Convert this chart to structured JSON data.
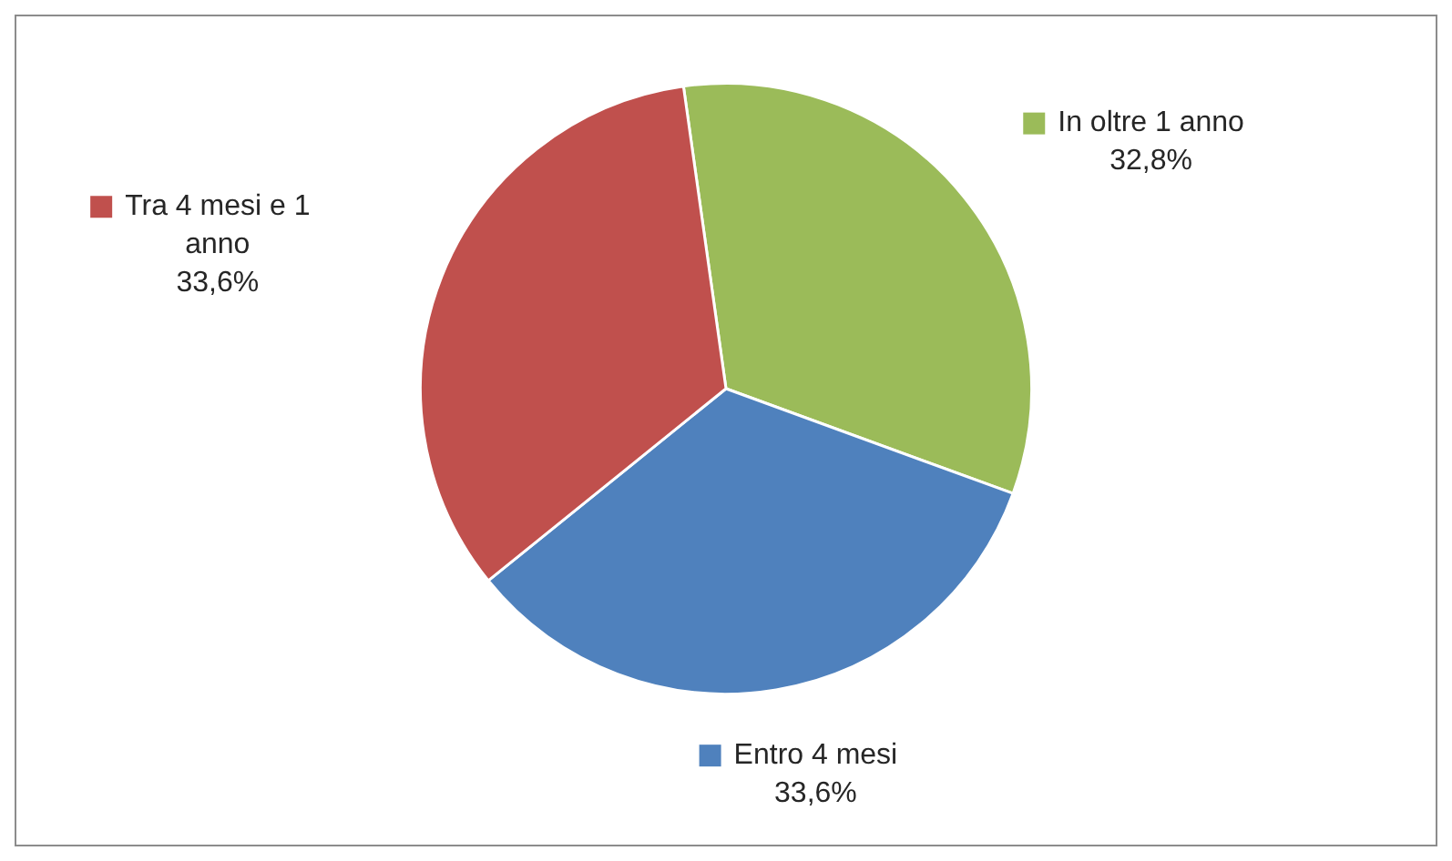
{
  "chart_data": {
    "type": "pie",
    "categories": [
      "In oltre 1 anno",
      "Entro 4 mesi",
      "Tra 4 mesi e 1 anno"
    ],
    "values": [
      32.8,
      33.6,
      33.6
    ],
    "colors": [
      "#9bbb59",
      "#4f81bd",
      "#c0504d"
    ],
    "value_labels": [
      "32,8%",
      "33,6%",
      "33,6%"
    ],
    "legend": "bottom left"
  }
}
